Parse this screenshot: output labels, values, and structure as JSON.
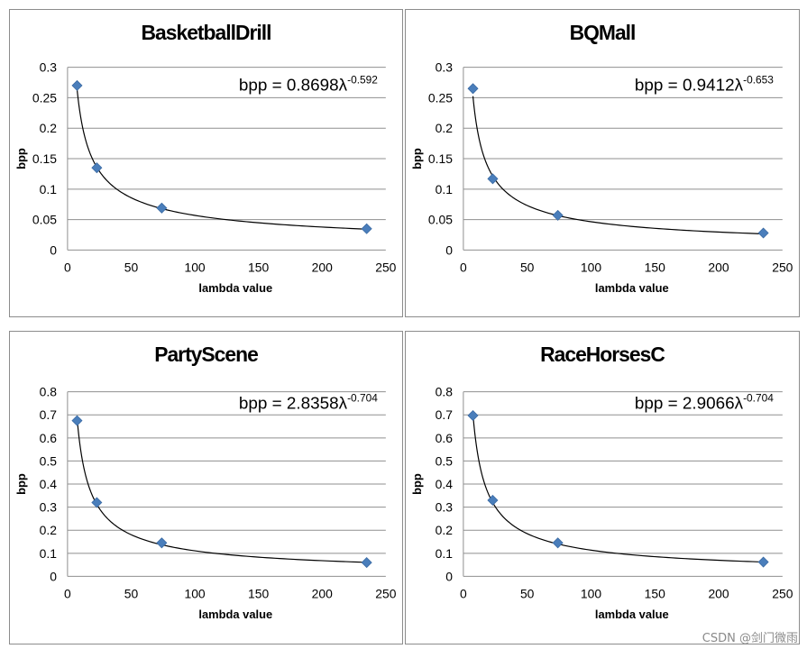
{
  "chart_data": [
    {
      "type": "scatter",
      "title": "BasketballDrill",
      "xlabel": "lambda value",
      "ylabel": "bpp",
      "xlim": [
        0,
        250
      ],
      "ylim": [
        0,
        0.3
      ],
      "xticks": [
        0,
        50,
        100,
        150,
        200,
        250
      ],
      "yticks": [
        0,
        0.05,
        0.1,
        0.15,
        0.2,
        0.25,
        0.3
      ],
      "x": [
        7.5,
        23,
        74,
        235
      ],
      "y": [
        0.27,
        0.135,
        0.069,
        0.035
      ],
      "fit": {
        "a": 0.8698,
        "b": -0.592
      },
      "equation": {
        "lhs": "bpp = 0.8698λ",
        "exp": "-0.592"
      }
    },
    {
      "type": "scatter",
      "title": "BQMall",
      "xlabel": "lambda value",
      "ylabel": "bpp",
      "xlim": [
        0,
        250
      ],
      "ylim": [
        0,
        0.3
      ],
      "xticks": [
        0,
        50,
        100,
        150,
        200,
        250
      ],
      "yticks": [
        0,
        0.05,
        0.1,
        0.15,
        0.2,
        0.25,
        0.3
      ],
      "x": [
        7.5,
        23,
        74,
        235
      ],
      "y": [
        0.265,
        0.117,
        0.057,
        0.028
      ],
      "fit": {
        "a": 0.9412,
        "b": -0.653
      },
      "equation": {
        "lhs": "bpp = 0.9412λ",
        "exp": "-0.653"
      }
    },
    {
      "type": "scatter",
      "title": "PartyScene",
      "xlabel": "lambda value",
      "ylabel": "bpp",
      "xlim": [
        0,
        250
      ],
      "ylim": [
        0,
        0.8
      ],
      "xticks": [
        0,
        50,
        100,
        150,
        200,
        250
      ],
      "yticks": [
        0,
        0.1,
        0.2,
        0.3,
        0.4,
        0.5,
        0.6,
        0.7,
        0.8
      ],
      "x": [
        7.5,
        23,
        74,
        235
      ],
      "y": [
        0.675,
        0.32,
        0.145,
        0.06
      ],
      "fit": {
        "a": 2.8358,
        "b": -0.704
      },
      "equation": {
        "lhs": "bpp = 2.8358λ",
        "exp": "-0.704"
      }
    },
    {
      "type": "scatter",
      "title": "RaceHorsesC",
      "xlabel": "lambda value",
      "ylabel": "bpp",
      "xlim": [
        0,
        250
      ],
      "ylim": [
        0,
        0.8
      ],
      "xticks": [
        0,
        50,
        100,
        150,
        200,
        250
      ],
      "yticks": [
        0,
        0.1,
        0.2,
        0.3,
        0.4,
        0.5,
        0.6,
        0.7,
        0.8
      ],
      "x": [
        7.5,
        23,
        74,
        235
      ],
      "y": [
        0.697,
        0.33,
        0.145,
        0.062
      ],
      "fit": {
        "a": 2.9066,
        "b": -0.704
      },
      "equation": {
        "lhs": "bpp = 2.9066λ",
        "exp": "-0.704"
      }
    }
  ],
  "watermark": "CSDN @剑门微雨"
}
